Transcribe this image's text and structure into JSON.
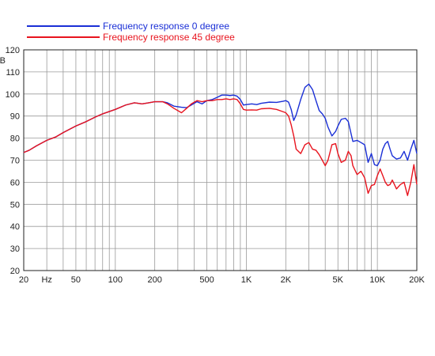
{
  "chart_data": {
    "type": "line",
    "x_scale": "log",
    "xlim": [
      20,
      20000
    ],
    "ylim": [
      20,
      120
    ],
    "ylabel": "dB",
    "x_tick_labels": [
      {
        "value": 20,
        "label": "20"
      },
      {
        "value": 30,
        "label": "Hz"
      },
      {
        "value": 50,
        "label": "50"
      },
      {
        "value": 100,
        "label": "100"
      },
      {
        "value": 200,
        "label": "200"
      },
      {
        "value": 500,
        "label": "500"
      },
      {
        "value": 1000,
        "label": "1K"
      },
      {
        "value": 2000,
        "label": "2K"
      },
      {
        "value": 5000,
        "label": "5K"
      },
      {
        "value": 10000,
        "label": "10K"
      },
      {
        "value": 20000,
        "label": "20K"
      }
    ],
    "y_ticks": [
      20,
      30,
      40,
      50,
      60,
      70,
      80,
      90,
      100,
      110,
      120
    ],
    "grid": true,
    "legend_position": "top-left",
    "series": [
      {
        "name": "Frequency response 0 degree",
        "color": "#1a2fd6",
        "points": [
          [
            20,
            73.5
          ],
          [
            22,
            74.5
          ],
          [
            25,
            76.5
          ],
          [
            30,
            79
          ],
          [
            35,
            80.5
          ],
          [
            40,
            82.5
          ],
          [
            50,
            85.5
          ],
          [
            60,
            87.5
          ],
          [
            70,
            89.5
          ],
          [
            80,
            91
          ],
          [
            100,
            93
          ],
          [
            120,
            95
          ],
          [
            140,
            96
          ],
          [
            160,
            95.5
          ],
          [
            180,
            96
          ],
          [
            200,
            96.5
          ],
          [
            230,
            96.5
          ],
          [
            250,
            96
          ],
          [
            280,
            94.5
          ],
          [
            320,
            94
          ],
          [
            350,
            93.8
          ],
          [
            380,
            95
          ],
          [
            420,
            96.5
          ],
          [
            460,
            95.5
          ],
          [
            500,
            97
          ],
          [
            550,
            97.5
          ],
          [
            600,
            98.5
          ],
          [
            650,
            99.5
          ],
          [
            700,
            99.5
          ],
          [
            750,
            99.3
          ],
          [
            800,
            99.5
          ],
          [
            850,
            99
          ],
          [
            900,
            97.5
          ],
          [
            950,
            95
          ],
          [
            1000,
            95.2
          ],
          [
            1100,
            95.5
          ],
          [
            1200,
            95.2
          ],
          [
            1300,
            95.8
          ],
          [
            1500,
            96.3
          ],
          [
            1700,
            96.2
          ],
          [
            1900,
            96.7
          ],
          [
            2000,
            97
          ],
          [
            2100,
            96.3
          ],
          [
            2200,
            93
          ],
          [
            2300,
            88
          ],
          [
            2400,
            90.5
          ],
          [
            2600,
            97.5
          ],
          [
            2800,
            103
          ],
          [
            3000,
            104.5
          ],
          [
            3200,
            102
          ],
          [
            3400,
            97
          ],
          [
            3600,
            92.5
          ],
          [
            3800,
            91
          ],
          [
            4000,
            89
          ],
          [
            4200,
            85
          ],
          [
            4500,
            81
          ],
          [
            4800,
            83
          ],
          [
            5000,
            85.5
          ],
          [
            5300,
            88.5
          ],
          [
            5700,
            89
          ],
          [
            6000,
            87.5
          ],
          [
            6300,
            82
          ],
          [
            6500,
            78.5
          ],
          [
            7000,
            79
          ],
          [
            7500,
            78
          ],
          [
            8000,
            77
          ],
          [
            8500,
            69
          ],
          [
            9000,
            73
          ],
          [
            9500,
            68
          ],
          [
            10000,
            67.5
          ],
          [
            10500,
            70
          ],
          [
            11000,
            75
          ],
          [
            11500,
            77.5
          ],
          [
            12000,
            78.5
          ],
          [
            12500,
            75
          ],
          [
            13000,
            72
          ],
          [
            14000,
            70.5
          ],
          [
            15000,
            71
          ],
          [
            16000,
            74
          ],
          [
            17000,
            70
          ],
          [
            18000,
            75
          ],
          [
            19000,
            79
          ],
          [
            20000,
            73
          ]
        ]
      },
      {
        "name": "Frequency response 45 degree",
        "color": "#e8141e",
        "points": [
          [
            20,
            73.5
          ],
          [
            22,
            74.5
          ],
          [
            25,
            76.5
          ],
          [
            30,
            79
          ],
          [
            35,
            80.5
          ],
          [
            40,
            82.5
          ],
          [
            50,
            85.5
          ],
          [
            60,
            87.5
          ],
          [
            70,
            89.5
          ],
          [
            80,
            91
          ],
          [
            100,
            93
          ],
          [
            120,
            95
          ],
          [
            140,
            96
          ],
          [
            160,
            95.5
          ],
          [
            180,
            96
          ],
          [
            200,
            96.5
          ],
          [
            230,
            96.5
          ],
          [
            250,
            95.5
          ],
          [
            280,
            93.5
          ],
          [
            320,
            91.5
          ],
          [
            350,
            93.5
          ],
          [
            380,
            95.5
          ],
          [
            420,
            97
          ],
          [
            460,
            96.5
          ],
          [
            500,
            97
          ],
          [
            550,
            97
          ],
          [
            600,
            97.5
          ],
          [
            650,
            97.5
          ],
          [
            700,
            97.8
          ],
          [
            750,
            97.5
          ],
          [
            800,
            97.8
          ],
          [
            850,
            97.5
          ],
          [
            900,
            95.5
          ],
          [
            950,
            93
          ],
          [
            1000,
            92.7
          ],
          [
            1100,
            92.8
          ],
          [
            1200,
            92.7
          ],
          [
            1300,
            93.3
          ],
          [
            1500,
            93.5
          ],
          [
            1700,
            93
          ],
          [
            1900,
            92
          ],
          [
            2000,
            91.5
          ],
          [
            2100,
            90
          ],
          [
            2200,
            86
          ],
          [
            2300,
            81
          ],
          [
            2400,
            75
          ],
          [
            2600,
            73
          ],
          [
            2800,
            77
          ],
          [
            3000,
            78
          ],
          [
            3200,
            75
          ],
          [
            3400,
            74.5
          ],
          [
            3600,
            72.5
          ],
          [
            3800,
            70
          ],
          [
            4000,
            67.5
          ],
          [
            4200,
            70
          ],
          [
            4500,
            77
          ],
          [
            4800,
            77.5
          ],
          [
            5000,
            73
          ],
          [
            5300,
            69
          ],
          [
            5700,
            70
          ],
          [
            6000,
            74
          ],
          [
            6300,
            72
          ],
          [
            6500,
            67.5
          ],
          [
            7000,
            63.5
          ],
          [
            7500,
            65
          ],
          [
            8000,
            62
          ],
          [
            8500,
            55
          ],
          [
            9000,
            58.5
          ],
          [
            9500,
            59
          ],
          [
            10000,
            63
          ],
          [
            10500,
            66
          ],
          [
            11000,
            63
          ],
          [
            11500,
            60
          ],
          [
            12000,
            58.5
          ],
          [
            12500,
            59
          ],
          [
            13000,
            61
          ],
          [
            14000,
            57
          ],
          [
            15000,
            59
          ],
          [
            16000,
            60
          ],
          [
            17000,
            54
          ],
          [
            18000,
            60
          ],
          [
            19000,
            68
          ],
          [
            20000,
            59
          ]
        ]
      }
    ]
  }
}
